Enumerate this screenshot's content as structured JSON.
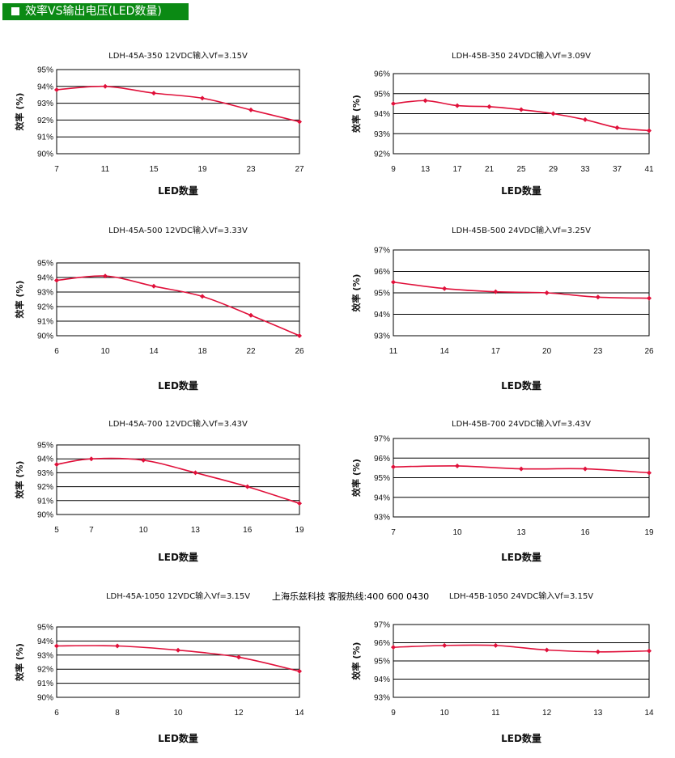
{
  "header": {
    "title": "效率VS输出电压(LED数量)"
  },
  "watermark": "上海乐兹科技 客服热线:400 600 0430",
  "series_color": "#e0103a",
  "chart_data": [
    {
      "type": "line",
      "title": "LDH-45A-350  12VDC输入Vf=3.15V",
      "xlabel": "LED数量",
      "ylabel": "效率 (%)",
      "x": [
        7,
        11,
        15,
        19,
        23,
        27
      ],
      "values": [
        93.8,
        94.0,
        93.6,
        93.3,
        92.6,
        91.9
      ],
      "xticks": [
        "7",
        "11",
        "15",
        "19",
        "23",
        "27"
      ],
      "yticks": [
        "90%",
        "91%",
        "92%",
        "93%",
        "94%",
        "95%"
      ],
      "ylim": [
        90,
        95
      ],
      "grid": true
    },
    {
      "type": "line",
      "title": "LDH-45B-350  24VDC输入Vf=3.09V",
      "xlabel": "LED数量",
      "ylabel": "效率 (%)",
      "x": [
        9,
        13,
        17,
        21,
        25,
        29,
        33,
        37,
        41
      ],
      "values": [
        94.5,
        94.65,
        94.4,
        94.35,
        94.2,
        94.0,
        93.7,
        93.3,
        93.15
      ],
      "xticks": [
        "9",
        "13",
        "17",
        "21",
        "25",
        "29",
        "33",
        "37",
        "41"
      ],
      "yticks": [
        "92%",
        "93%",
        "94%",
        "95%",
        "96%"
      ],
      "ylim": [
        92,
        96
      ],
      "grid": true
    },
    {
      "type": "line",
      "title": "LDH-45A-500 12VDC输入Vf=3.33V",
      "xlabel": "LED数量",
      "ylabel": "效率 (%)",
      "x": [
        6,
        10,
        14,
        18,
        22,
        26
      ],
      "values": [
        93.8,
        94.1,
        93.4,
        92.7,
        91.4,
        90.0
      ],
      "xticks": [
        "6",
        "10",
        "14",
        "18",
        "22",
        "26"
      ],
      "yticks": [
        "90%",
        "91%",
        "92%",
        "93%",
        "94%",
        "95%"
      ],
      "ylim": [
        90,
        95
      ],
      "grid": true
    },
    {
      "type": "line",
      "title": "LDH-45B-500  24VDC输入Vf=3.25V",
      "xlabel": "LED数量",
      "ylabel": "效率 (%)",
      "x": [
        11,
        14,
        17,
        20,
        23,
        26
      ],
      "values": [
        95.5,
        95.2,
        95.05,
        95.0,
        94.8,
        94.75
      ],
      "xticks": [
        "11",
        "14",
        "17",
        "20",
        "23",
        "26"
      ],
      "yticks": [
        "93%",
        "94%",
        "95%",
        "96%",
        "97%"
      ],
      "ylim": [
        93,
        97
      ],
      "grid": true
    },
    {
      "type": "line",
      "title": "LDH-45A-700 12VDC输入Vf=3.43V",
      "xlabel": "LED数量",
      "ylabel": "效率 (%)",
      "x": [
        5,
        7,
        10,
        13,
        16,
        19
      ],
      "values": [
        93.6,
        94.0,
        93.9,
        93.0,
        92.0,
        90.8
      ],
      "xticks": [
        "5",
        "7",
        "10",
        "13",
        "16",
        "19"
      ],
      "yticks": [
        "90%",
        "91%",
        "92%",
        "93%",
        "94%",
        "95%"
      ],
      "ylim": [
        90,
        95
      ],
      "grid": true
    },
    {
      "type": "line",
      "title": "LDH-45B-700  24VDC输入Vf=3.43V",
      "xlabel": "LED数量",
      "ylabel": "效率 (%)",
      "x": [
        7,
        10,
        13,
        16,
        19
      ],
      "values": [
        95.55,
        95.6,
        95.45,
        95.45,
        95.25
      ],
      "xticks": [
        "7",
        "10",
        "13",
        "16",
        "19"
      ],
      "yticks": [
        "93%",
        "94%",
        "95%",
        "96%",
        "97%"
      ],
      "ylim": [
        93,
        97
      ],
      "grid": true
    },
    {
      "type": "line",
      "title": "LDH-45A-1050  12VDC输入Vf=3.15V",
      "xlabel": "LED数量",
      "ylabel": "效率 (%)",
      "x": [
        6,
        8,
        10,
        12,
        14
      ],
      "values": [
        93.65,
        93.65,
        93.35,
        92.85,
        91.85
      ],
      "xticks": [
        "6",
        "8",
        "10",
        "12",
        "14"
      ],
      "yticks": [
        "90%",
        "91%",
        "92%",
        "93%",
        "94%",
        "95%"
      ],
      "ylim": [
        90,
        95
      ],
      "grid": true
    },
    {
      "type": "line",
      "title": "LDH-45B-1050  24VDC输入Vf=3.15V",
      "xlabel": "LED数量",
      "ylabel": "效率 (%)",
      "x": [
        9,
        10,
        11,
        12,
        13,
        14
      ],
      "values": [
        95.75,
        95.85,
        95.85,
        95.6,
        95.5,
        95.55
      ],
      "xticks": [
        "9",
        "10",
        "11",
        "12",
        "13",
        "14"
      ],
      "yticks": [
        "93%",
        "94%",
        "95%",
        "96%",
        "97%"
      ],
      "ylim": [
        93,
        97
      ],
      "grid": true
    }
  ]
}
